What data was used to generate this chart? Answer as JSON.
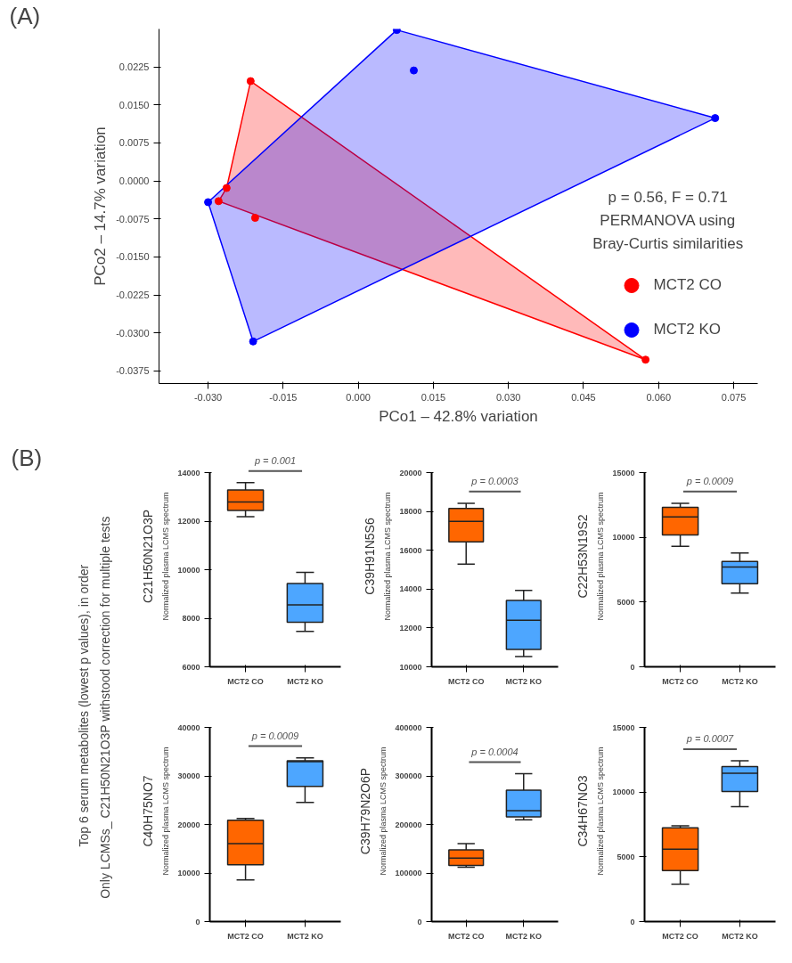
{
  "chart_data": [
    {
      "type": "scatter",
      "xlabel": "PCo1 – 42.8% variation",
      "ylabel": "PCo2 – 14.7% variation",
      "annotations": [
        "(A)",
        "p = 0.56, F = 0.71\nPERMANOVA using\nBray-Curtis similarities"
      ],
      "series": [
        {
          "name": "MCT2 CO",
          "color": "#ff0000",
          "x": [
            -0.0215,
            -0.0263,
            -0.0279,
            -0.0206,
            0.0574
          ],
          "values": [
            0.0197,
            -0.0014,
            -0.004,
            -0.0073,
            -0.0353
          ]
        },
        {
          "name": "MCT2 KO",
          "color": "#0000ff",
          "x": [
            0.0077,
            0.0111,
            0.0713,
            -0.03,
            -0.021
          ],
          "values": [
            0.0298,
            0.0218,
            0.0124,
            -0.0042,
            -0.0317
          ]
        },
        {
          "type": "area",
          "marker": "none",
          "color": "#ff0000",
          "x": [
            -0.0215,
            0.0574,
            -0.0279,
            -0.0263
          ],
          "values": [
            0.0197,
            -0.0353,
            -0.004,
            -0.0014
          ]
        },
        {
          "type": "area",
          "marker": "none",
          "color": "#0000ff",
          "x": [
            0.0077,
            0.0713,
            -0.021,
            -0.03
          ],
          "values": [
            0.0298,
            0.0124,
            -0.0317,
            -0.0042
          ]
        }
      ],
      "xlim": [
        -0.0398,
        0.0798
      ],
      "ylim": [
        -0.04,
        0.03
      ],
      "xticks": [
        {
          "value": -0.03,
          "label": "-0.030"
        },
        {
          "value": -0.015,
          "label": "-0.015"
        },
        {
          "value": 0,
          "label": "0.000"
        },
        {
          "value": 0.015,
          "label": "0.015"
        },
        {
          "value": 0.03,
          "label": "0.030"
        },
        {
          "value": 0.045,
          "label": "0.045"
        },
        {
          "value": 0.06,
          "label": "0.060"
        },
        {
          "value": 0.075,
          "label": "0.075"
        }
      ],
      "yticks": [
        {
          "value": -0.0375,
          "label": "-0.0375"
        },
        {
          "value": -0.03,
          "label": "-0.0300"
        },
        {
          "value": -0.0225,
          "label": "-0.0225"
        },
        {
          "value": -0.015,
          "label": "-0.0150"
        },
        {
          "value": -0.0075,
          "label": "-0.0075"
        },
        {
          "value": 0,
          "label": "0.0000"
        },
        {
          "value": 0.0075,
          "label": "0.0075"
        },
        {
          "value": 0.015,
          "label": "0.0150"
        },
        {
          "value": 0.0225,
          "label": "0.0225"
        }
      ],
      "legend": "bottom right",
      "grid": false,
      "marker": "circle"
    },
    {
      "type": "box",
      "title": "C21H50N21O3P",
      "ylabel": "Normalized plasma LCMS spectrum",
      "categories": [
        "MCT2 CO",
        "MCT2 KO"
      ],
      "colors": [
        "#ff6600",
        "#4da6ff"
      ],
      "boxes": [
        {
          "low": 12200,
          "q1": 12450,
          "median": 12800,
          "q3": 13300,
          "high": 13600
        },
        {
          "low": 7460,
          "q1": 7840,
          "median": 8560,
          "q3": 9440,
          "high": 9900
        }
      ],
      "ylim": [
        6000,
        14000
      ],
      "yticks": [
        6000,
        8000,
        10000,
        12000,
        14000
      ],
      "grid": false,
      "annotations": [
        "p = 0.001",
        "(B)",
        "Top 6 serum metabolites (lowest p values), in order",
        "Only LCMSs_ C21H50N21O3P  withstood correction for multiple tests"
      ]
    },
    {
      "type": "box",
      "title": "C39H91N5S6",
      "ylabel": "Normalized plasma LCMS spectrum",
      "categories": [
        "MCT2 CO",
        "MCT2 KO"
      ],
      "colors": [
        "#ff6600",
        "#4da6ff"
      ],
      "boxes": [
        {
          "low": 15300,
          "q1": 16450,
          "median": 17500,
          "q3": 18170,
          "high": 18440
        },
        {
          "low": 10530,
          "q1": 10900,
          "median": 12400,
          "q3": 13430,
          "high": 13940
        }
      ],
      "ylim": [
        10000,
        20000
      ],
      "yticks": [
        10000,
        12000,
        14000,
        16000,
        18000,
        20000
      ],
      "grid": false,
      "annotations": [
        "p = 0.0003"
      ]
    },
    {
      "type": "box",
      "title": "C22H53N19S2",
      "ylabel": "Normalized plasma LCMS spectrum",
      "categories": [
        "MCT2 CO",
        "MCT2 KO"
      ],
      "colors": [
        "#ff6600",
        "#4da6ff"
      ],
      "boxes": [
        {
          "low": 9330,
          "q1": 10200,
          "median": 11600,
          "q3": 12340,
          "high": 12660
        },
        {
          "low": 5710,
          "q1": 6430,
          "median": 7730,
          "q3": 8150,
          "high": 8800
        }
      ],
      "ylim": [
        0,
        15000
      ],
      "yticks": [
        0,
        5000,
        10000,
        15000
      ],
      "grid": false,
      "annotations": [
        "p = 0.0009"
      ]
    },
    {
      "type": "box",
      "title": "C40H75NO7",
      "ylabel": "Normalized plasma LCMS spectrum",
      "categories": [
        "MCT2 CO",
        "MCT2 KO"
      ],
      "colors": [
        "#ff6600",
        "#4da6ff"
      ],
      "boxes": [
        {
          "low": 8600,
          "q1": 11700,
          "median": 16100,
          "q3": 20900,
          "high": 21300
        },
        {
          "low": 24600,
          "q1": 27900,
          "median": 33000,
          "q3": 33200,
          "high": 33800
        }
      ],
      "ylim": [
        0,
        40000
      ],
      "yticks": [
        0,
        10000,
        20000,
        30000,
        40000
      ],
      "grid": false,
      "annotations": [
        "p = 0.0009"
      ]
    },
    {
      "type": "box",
      "title": "C39H79N2O6P",
      "ylabel": "Normalized plasma LCMS spectrum",
      "categories": [
        "MCT2 CO",
        "MCT2 KO"
      ],
      "colors": [
        "#ff6600",
        "#4da6ff"
      ],
      "boxes": [
        {
          "low": 112000,
          "q1": 116000,
          "median": 131000,
          "q3": 148000,
          "high": 161000
        },
        {
          "low": 210000,
          "q1": 216000,
          "median": 229000,
          "q3": 271000,
          "high": 305000
        }
      ],
      "ylim": [
        0,
        400000
      ],
      "yticks": [
        0,
        100000,
        200000,
        300000,
        400000
      ],
      "grid": false,
      "annotations": [
        "p = 0.0004"
      ]
    },
    {
      "type": "box",
      "title": "C34H67NO3",
      "ylabel": "Normalized plasma LCMS spectrum",
      "categories": [
        "MCT2 CO",
        "MCT2 KO"
      ],
      "colors": [
        "#ff6600",
        "#4da6ff"
      ],
      "boxes": [
        {
          "low": 2890,
          "q1": 3950,
          "median": 5600,
          "q3": 7250,
          "high": 7420
        },
        {
          "low": 8890,
          "q1": 10060,
          "median": 11480,
          "q3": 12000,
          "high": 12450
        }
      ],
      "ylim": [
        0,
        15000
      ],
      "yticks": [
        0,
        5000,
        10000,
        15000
      ],
      "grid": false,
      "annotations": [
        "p = 0.0007"
      ]
    }
  ]
}
